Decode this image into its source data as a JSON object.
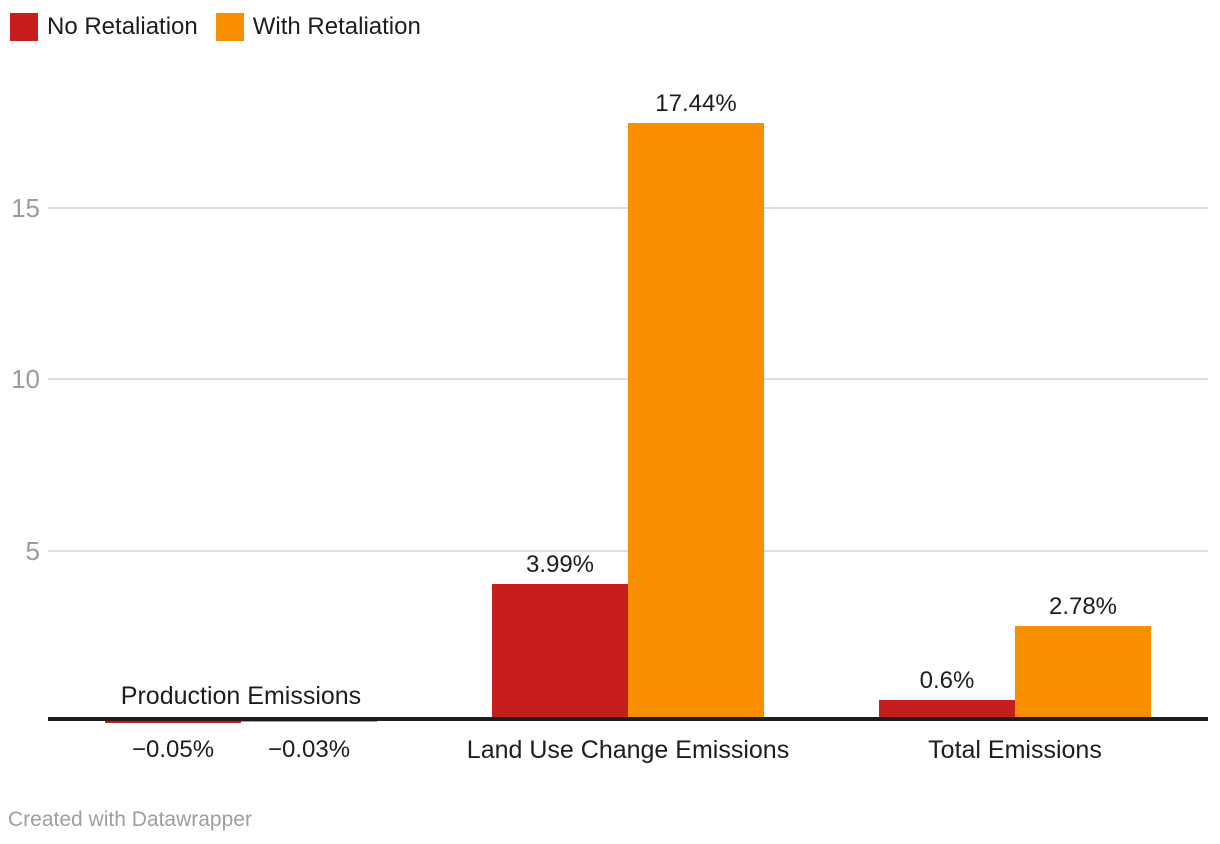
{
  "legend": {
    "items": [
      {
        "label": "No Retaliation",
        "color": "#c71e1d"
      },
      {
        "label": "With Retaliation",
        "color": "#f98e00"
      }
    ]
  },
  "chart_data": {
    "type": "bar",
    "categories": [
      "Production Emissions",
      "Land Use Change Emissions",
      "Total Emissions"
    ],
    "series": [
      {
        "name": "No Retaliation",
        "color": "#c71e1d",
        "values": [
          -0.05,
          3.99,
          0.6
        ],
        "value_labels": [
          "−0.05%",
          "3.99%",
          "0.6%"
        ]
      },
      {
        "name": "With Retaliation",
        "color": "#f98e00",
        "values": [
          -0.03,
          17.44,
          2.78
        ],
        "value_labels": [
          "−0.03%",
          "17.44%",
          "2.78%"
        ]
      }
    ],
    "y_ticks": [
      5,
      10,
      15
    ],
    "ylim": [
      -0.1,
      17.6
    ],
    "unit": "%",
    "grid": true,
    "legend_position": "top-left"
  },
  "footer": {
    "credit": "Created with Datawrapper"
  },
  "colors": {
    "series_red": "#c71e1d",
    "series_orange": "#f98e00",
    "gridline": "#dedede",
    "axis_line": "#1d1d1d",
    "label_text": "#1d1d1d",
    "tick_text": "#9b9b9b",
    "credit_text": "#9e9e9e",
    "background": "#ffffff"
  }
}
